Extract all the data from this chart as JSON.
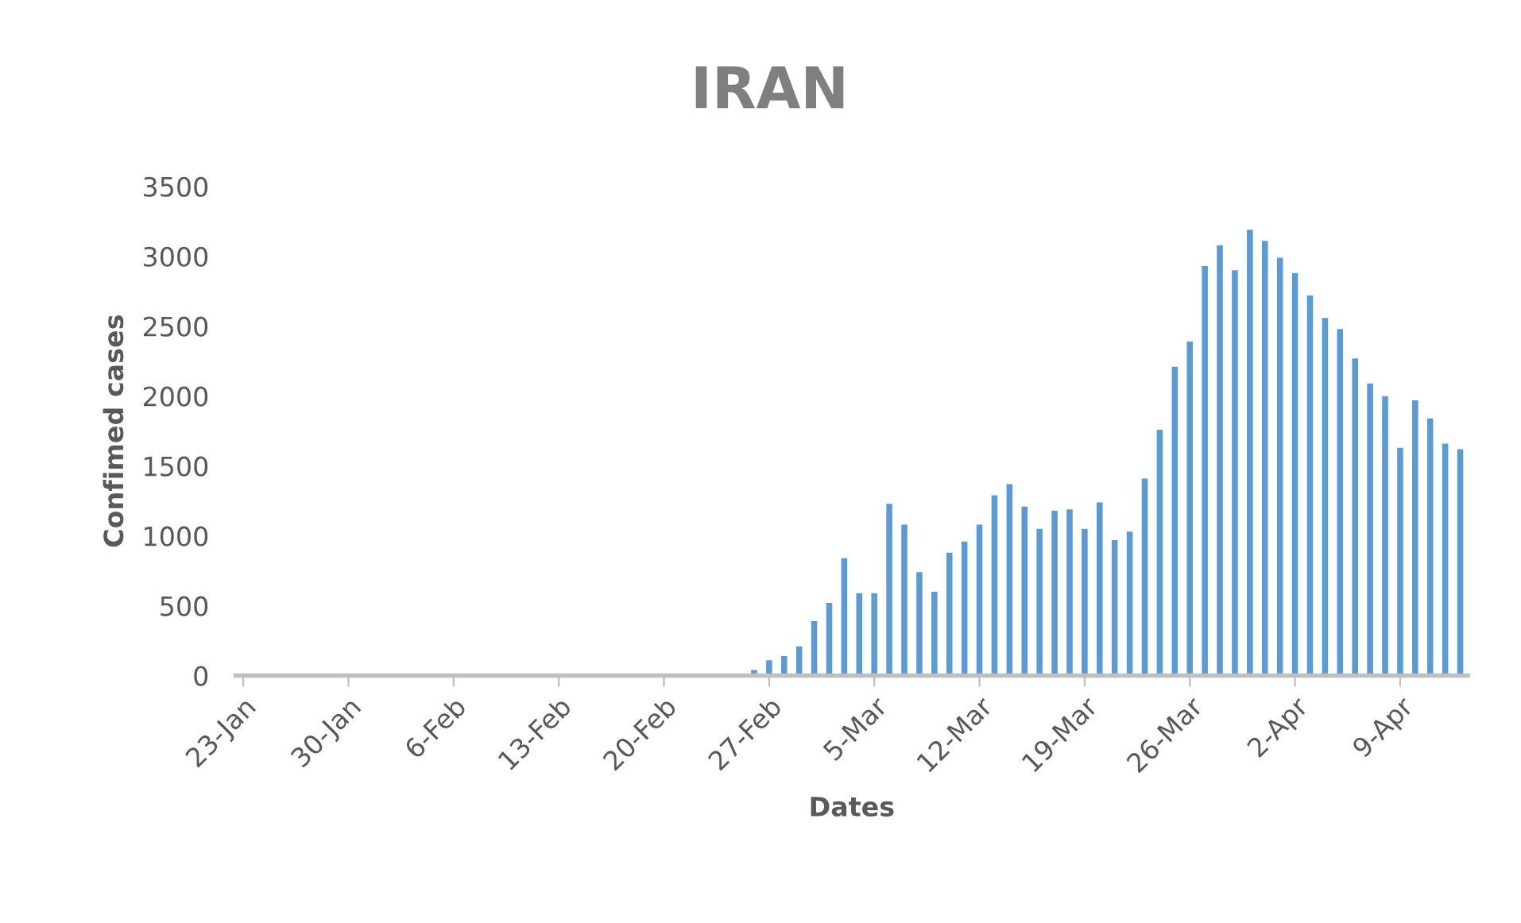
{
  "chart_data": {
    "type": "bar",
    "title": "IRAN",
    "xlabel": "Dates",
    "ylabel": "Confimed cases",
    "categories": [
      "23-Jan",
      null,
      null,
      null,
      null,
      null,
      null,
      "30-Jan",
      null,
      null,
      null,
      null,
      null,
      null,
      "6-Feb",
      null,
      null,
      null,
      null,
      null,
      null,
      "13-Feb",
      null,
      null,
      null,
      null,
      null,
      null,
      "20-Feb",
      null,
      null,
      null,
      null,
      null,
      null,
      "27-Feb",
      null,
      null,
      null,
      null,
      null,
      null,
      "5-Mar",
      null,
      null,
      null,
      null,
      null,
      null,
      "12-Mar",
      null,
      null,
      null,
      null,
      null,
      null,
      "19-Mar",
      null,
      null,
      null,
      null,
      null,
      null,
      "26-Mar",
      null,
      null,
      null,
      null,
      null,
      null,
      "2-Apr",
      null,
      null,
      null,
      null,
      null,
      null,
      "9-Apr",
      null,
      null,
      null,
      null
    ],
    "values": [
      0,
      0,
      0,
      0,
      0,
      0,
      0,
      0,
      0,
      0,
      0,
      0,
      0,
      0,
      0,
      0,
      0,
      0,
      0,
      0,
      0,
      0,
      0,
      0,
      0,
      0,
      0,
      0,
      0,
      0,
      0,
      0,
      0,
      0,
      40,
      110,
      140,
      210,
      390,
      520,
      840,
      590,
      590,
      1230,
      1080,
      740,
      600,
      880,
      960,
      1080,
      1290,
      1370,
      1210,
      1050,
      1180,
      1190,
      1050,
      1240,
      970,
      1030,
      1410,
      1760,
      2210,
      2390,
      2930,
      3080,
      2900,
      3190,
      3110,
      2990,
      2880,
      2720,
      2560,
      2480,
      2270,
      2090,
      2000,
      1630,
      1970,
      1840,
      1660,
      1620
    ],
    "color": "#5b9bd5",
    "ylim": [
      0,
      3500
    ],
    "yticks": [
      0,
      500,
      1000,
      1500,
      2000,
      2500,
      3000,
      3500
    ],
    "grid": false,
    "legend": false
  }
}
